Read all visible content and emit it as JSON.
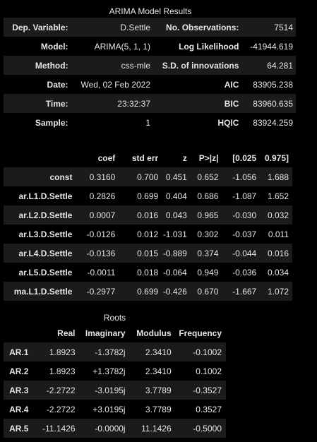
{
  "summary": {
    "caption": "ARIMA Model Results",
    "rows": [
      [
        "Dep. Variable:",
        "D.Settle",
        "No. Observations:",
        "7514"
      ],
      [
        "Model:",
        "ARIMA(5, 1, 1)",
        "Log Likelihood",
        "-41944.619"
      ],
      [
        "Method:",
        "css-mle",
        "S.D. of innovations",
        "64.281"
      ],
      [
        "Date:",
        "Wed, 02 Feb 2022",
        "AIC",
        "83905.238"
      ],
      [
        "Time:",
        "23:32:37",
        "BIC",
        "83960.635"
      ],
      [
        "Sample:",
        "1",
        "HQIC",
        "83924.259"
      ]
    ]
  },
  "coefficients": {
    "headers": [
      "",
      "coef",
      "std err",
      "z",
      "P>|z|",
      "[0.025",
      "0.975]"
    ],
    "rows": [
      [
        "const",
        "0.3160",
        "0.700",
        "0.451",
        "0.652",
        "-1.056",
        "1.688"
      ],
      [
        "ar.L1.D.Settle",
        "0.2826",
        "0.699",
        "0.404",
        "0.686",
        "-1.087",
        "1.652"
      ],
      [
        "ar.L2.D.Settle",
        "0.0007",
        "0.016",
        "0.043",
        "0.965",
        "-0.030",
        "0.032"
      ],
      [
        "ar.L3.D.Settle",
        "-0.0126",
        "0.012",
        "-1.031",
        "0.302",
        "-0.037",
        "0.011"
      ],
      [
        "ar.L4.D.Settle",
        "-0.0136",
        "0.015",
        "-0.889",
        "0.374",
        "-0.044",
        "0.016"
      ],
      [
        "ar.L5.D.Settle",
        "-0.0011",
        "0.018",
        "-0.064",
        "0.949",
        "-0.036",
        "0.034"
      ],
      [
        "ma.L1.D.Settle",
        "-0.2977",
        "0.699",
        "-0.426",
        "0.670",
        "-1.667",
        "1.072"
      ]
    ]
  },
  "roots": {
    "caption": "Roots",
    "headers": [
      "",
      "Real",
      "Imaginary",
      "Modulus",
      "Frequency"
    ],
    "rows": [
      [
        "AR.1",
        "1.8923",
        "-1.3782j",
        "2.3410",
        "-0.1002"
      ],
      [
        "AR.2",
        "1.8923",
        "+1.3782j",
        "2.3410",
        "0.1002"
      ],
      [
        "AR.3",
        "-2.2722",
        "-3.0195j",
        "3.7789",
        "-0.3527"
      ],
      [
        "AR.4",
        "-2.2722",
        "+3.0195j",
        "3.7789",
        "0.3527"
      ],
      [
        "AR.5",
        "-11.1426",
        "-0.0000j",
        "11.1426",
        "-0.5000"
      ]
    ]
  }
}
